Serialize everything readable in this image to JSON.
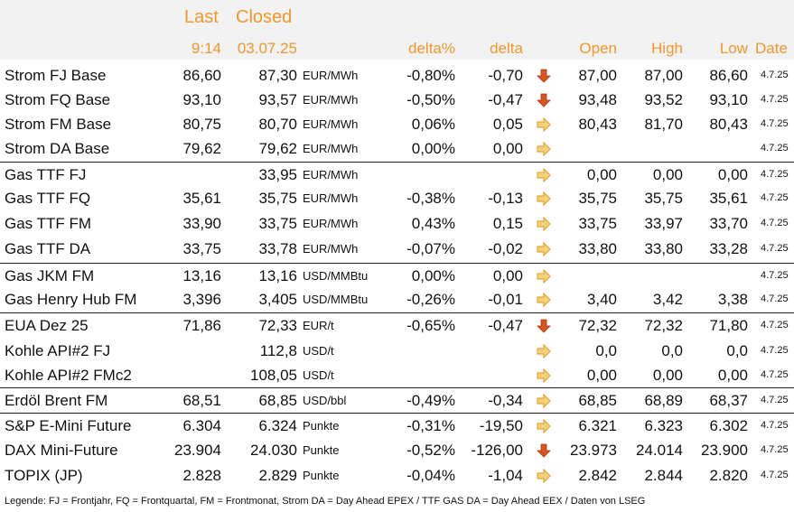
{
  "header": {
    "last": "Last",
    "closed": "Closed",
    "last_time": "9:14",
    "closed_date": "03.07.25",
    "delta_pct": "delta%",
    "delta": "delta",
    "open": "Open",
    "high": "High",
    "low": "Low",
    "date": "Date"
  },
  "colors": {
    "accent": "#f0962a",
    "down": "#d9541e",
    "side": "#e5a33a",
    "header_bg": "#f2f2f2"
  },
  "rows": [
    {
      "name": "Strom FJ Base",
      "last": "86,60",
      "closed": "87,30",
      "unit": "EUR/MWh",
      "pct": "-0,80%",
      "delta": "-0,70",
      "arrow": "down",
      "open": "87,00",
      "high": "87,00",
      "low": "86,60",
      "date": "4.7.25"
    },
    {
      "name": "Strom FQ Base",
      "last": "93,10",
      "closed": "93,57",
      "unit": "EUR/MWh",
      "pct": "-0,50%",
      "delta": "-0,47",
      "arrow": "down",
      "open": "93,48",
      "high": "93,52",
      "low": "93,10",
      "date": "4.7.25"
    },
    {
      "name": "Strom FM Base",
      "last": "80,75",
      "closed": "80,70",
      "unit": "EUR/MWh",
      "pct": "0,06%",
      "delta": "0,05",
      "arrow": "right",
      "open": "80,43",
      "high": "81,70",
      "low": "80,43",
      "date": "4.7.25"
    },
    {
      "name": "Strom DA Base",
      "last": "79,62",
      "closed": "79,62",
      "unit": "EUR/MWh",
      "pct": "0,00%",
      "delta": "0,00",
      "arrow": "right",
      "open": "",
      "high": "",
      "low": "",
      "date": "4.7.25"
    },
    {
      "name": "Gas TTF FJ",
      "last": "",
      "closed": "33,95",
      "unit": "EUR/MWh",
      "pct": "",
      "delta": "",
      "arrow": "right",
      "open": "0,00",
      "high": "0,00",
      "low": "0,00",
      "date": "4.7.25"
    },
    {
      "name": "Gas TTF FQ",
      "last": "35,61",
      "closed": "35,75",
      "unit": "EUR/MWh",
      "pct": "-0,38%",
      "delta": "-0,13",
      "arrow": "right",
      "open": "35,75",
      "high": "35,75",
      "low": "35,61",
      "date": "4.7.25"
    },
    {
      "name": "Gas TTF FM",
      "last": "33,90",
      "closed": "33,75",
      "unit": "EUR/MWh",
      "pct": "0,43%",
      "delta": "0,15",
      "arrow": "right",
      "open": "33,75",
      "high": "33,97",
      "low": "33,70",
      "date": "4.7.25"
    },
    {
      "name": "Gas TTF DA",
      "last": "33,75",
      "closed": "33,78",
      "unit": "EUR/MWh",
      "pct": "-0,07%",
      "delta": "-0,02",
      "arrow": "right",
      "open": "33,80",
      "high": "33,80",
      "low": "33,28",
      "date": "4.7.25"
    },
    {
      "name": "Gas JKM FM",
      "last": "13,16",
      "closed": "13,16",
      "unit": "USD/MMBtu",
      "pct": "0,00%",
      "delta": "0,00",
      "arrow": "right",
      "open": "",
      "high": "",
      "low": "",
      "date": "4.7.25"
    },
    {
      "name": "Gas Henry Hub FM",
      "last": "3,396",
      "closed": "3,405",
      "unit": "USD/MMBtu",
      "pct": "-0,26%",
      "delta": "-0,01",
      "arrow": "right",
      "open": "3,40",
      "high": "3,42",
      "low": "3,38",
      "date": "4.7.25"
    },
    {
      "name": "EUA Dez 25",
      "last": "71,86",
      "closed": "72,33",
      "unit": "EUR/t",
      "pct": "-0,65%",
      "delta": "-0,47",
      "arrow": "down",
      "open": "72,32",
      "high": "72,32",
      "low": "71,80",
      "date": "4.7.25"
    },
    {
      "name": "Kohle API#2 FJ",
      "last": "",
      "closed": "112,8",
      "unit": "USD/t",
      "pct": "",
      "delta": "",
      "arrow": "right",
      "open": "0,0",
      "high": "0,0",
      "low": "0,0",
      "date": "4.7.25"
    },
    {
      "name": "Kohle API#2 FMc2",
      "last": "",
      "closed": "108,05",
      "unit": "USD/t",
      "pct": "",
      "delta": "",
      "arrow": "right",
      "open": "0,00",
      "high": "0,00",
      "low": "0,00",
      "date": "4.7.25"
    },
    {
      "name": "Erdöl Brent FM",
      "last": "68,51",
      "closed": "68,85",
      "unit": "USD/bbl",
      "pct": "-0,49%",
      "delta": "-0,34",
      "arrow": "right",
      "open": "68,85",
      "high": "68,89",
      "low": "68,37",
      "date": "4.7.25"
    },
    {
      "name": "S&P E-Mini Future",
      "last": "6.304",
      "closed": "6.324",
      "unit": "Punkte",
      "pct": "-0,31%",
      "delta": "-19,50",
      "arrow": "right",
      "open": "6.321",
      "high": "6.323",
      "low": "6.302",
      "date": "4.7.25"
    },
    {
      "name": "DAX Mini-Future",
      "last": "23.904",
      "closed": "24.030",
      "unit": "Punkte",
      "pct": "-0,52%",
      "delta": "-126,00",
      "arrow": "down",
      "open": "23.973",
      "high": "24.014",
      "low": "23.900",
      "date": "4.7.25"
    },
    {
      "name": "TOPIX (JP)",
      "last": "2.828",
      "closed": "2.829",
      "unit": "Punkte",
      "pct": "-0,04%",
      "delta": "-1,04",
      "arrow": "right",
      "open": "2.842",
      "high": "2.844",
      "low": "2.820",
      "date": "4.7.25"
    }
  ],
  "legend": "Legende: FJ = Frontjahr, FQ = Frontquartal, FM = Frontmonat, Strom DA = Day Ahead EPEX / TTF GAS DA = Day Ahead EEX / Daten von LSEG"
}
